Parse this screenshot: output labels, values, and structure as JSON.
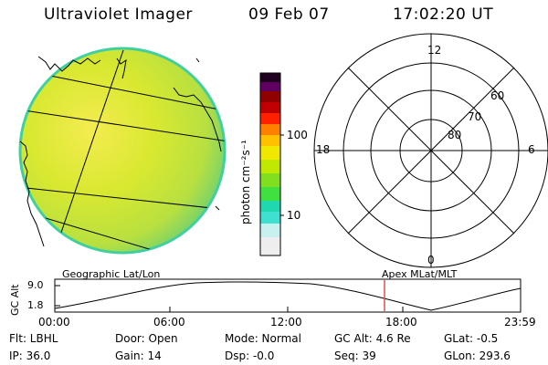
{
  "header": {
    "instrument": "Ultraviolet Imager",
    "date": "09 Feb 07",
    "time": "17:02:20 UT"
  },
  "colorbar": {
    "label": "photon cm⁻²s⁻¹",
    "ticks": [
      "100",
      "10"
    ],
    "colors": [
      "#e8e8e8",
      "#c8f0ee",
      "#40e0d0",
      "#00d0c0",
      "#40e040",
      "#80e020",
      "#c0e800",
      "#f0e800",
      "#ffc000",
      "#ff8000",
      "#ff2000",
      "#c00000",
      "#900000",
      "#600060",
      "#200020"
    ]
  },
  "polar": {
    "labels": {
      "top": "12",
      "left": "18",
      "right": "6",
      "bottom": "0",
      "ring60": "60",
      "ring70": "70",
      "ring80": "80"
    }
  },
  "track": {
    "left_title": "Geographic Lat/Lon",
    "right_title": "Apex MLat/MLT",
    "y_axis": "GC Alt",
    "y_ticks": [
      "9.0",
      "1.8"
    ],
    "x_ticks": [
      "00:00",
      "06:00",
      "12:00",
      "18:00",
      "23:59"
    ]
  },
  "status": {
    "flt": "Flt: LBHL",
    "ip": "IP: 36.0",
    "door": "Door: Open",
    "gain": "Gain: 14",
    "mode": "Mode: Normal",
    "dsp": "Dsp:    -0.0",
    "gcalt": "GC Alt: 4.6 Re",
    "seq": "Seq: 39",
    "glat": "GLat:   -0.5",
    "glon": "GLon: 293.6"
  }
}
